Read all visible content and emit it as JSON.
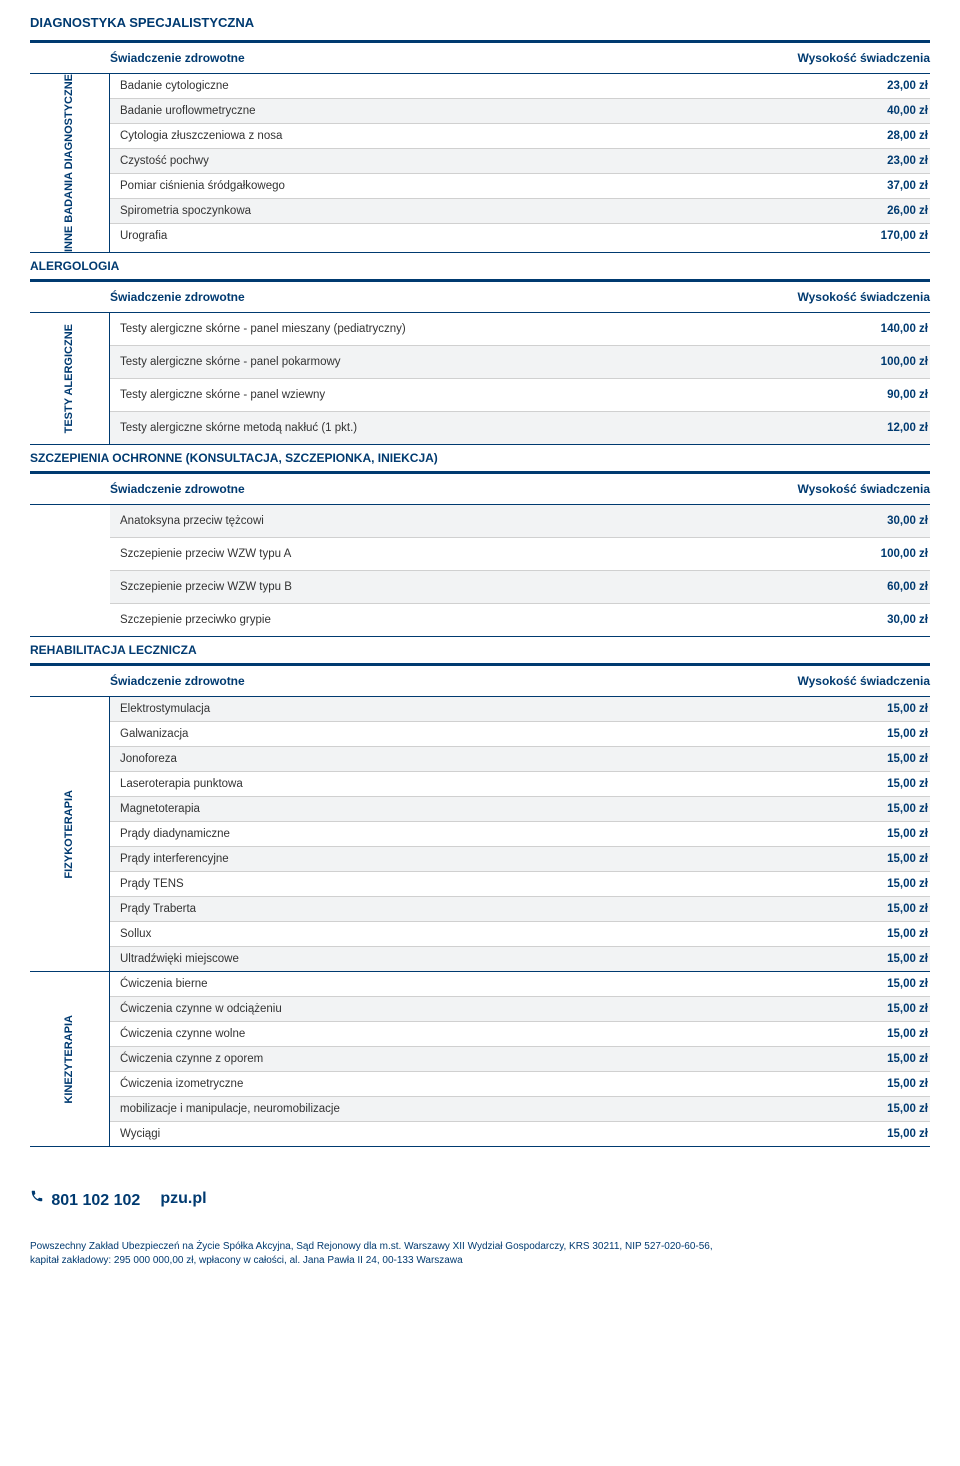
{
  "main_title": "DIAGNOSTYKA SPECJALISTYCZNA",
  "header_left": "Świadczenie zdrowotne",
  "header_right": "Wysokość świadczenia",
  "sections": [
    {
      "title": "",
      "category_label": "INNE BADANIA DIAGNOSTYCZNE",
      "rows": [
        {
          "name": "Badanie cytologiczne",
          "price": "23,00 zł",
          "alt": false
        },
        {
          "name": "Badanie uroflowmetryczne",
          "price": "40,00 zł",
          "alt": true
        },
        {
          "name": "Cytologia złuszczeniowa z nosa",
          "price": "28,00 zł",
          "alt": false
        },
        {
          "name": "Czystość pochwy",
          "price": "23,00 zł",
          "alt": true
        },
        {
          "name": "Pomiar ciśnienia śródgałkowego",
          "price": "37,00 zł",
          "alt": false
        },
        {
          "name": "Spirometria spoczynkowa",
          "price": "26,00 zł",
          "alt": true
        },
        {
          "name": "Urografia",
          "price": "170,00 zł",
          "alt": false
        }
      ]
    },
    {
      "title": "ALERGOLOGIA",
      "category_label": "TESTY ALERGICZNE",
      "rows": [
        {
          "name": "Testy alergiczne skórne - panel mieszany (pediatryczny)",
          "price": "140,00 zł",
          "alt": false,
          "tall": true
        },
        {
          "name": "Testy alergiczne skórne - panel pokarmowy",
          "price": "100,00 zł",
          "alt": true,
          "tall": true
        },
        {
          "name": "Testy alergiczne skórne - panel wziewny",
          "price": "90,00 zł",
          "alt": false,
          "tall": true
        },
        {
          "name": "Testy alergiczne skórne metodą nakłuć (1 pkt.)",
          "price": "12,00 zł",
          "alt": true,
          "tall": true
        }
      ]
    },
    {
      "title": "SZCZEPIENIA OCHRONNE (KONSULTACJA, SZCZEPIONKA, INIEKCJA)",
      "category_label": "",
      "rows": [
        {
          "name": "Anatoksyna przeciw tężcowi",
          "price": "30,00 zł",
          "alt": true,
          "tall": true
        },
        {
          "name": "Szczepienie przeciw WZW typu A",
          "price": "100,00 zł",
          "alt": false,
          "tall": true
        },
        {
          "name": "Szczepienie przeciw WZW typu B",
          "price": "60,00 zł",
          "alt": true,
          "tall": true
        },
        {
          "name": "Szczepienie przeciwko grypie",
          "price": "30,00 zł",
          "alt": false,
          "tall": true
        }
      ]
    },
    {
      "title": "REHABILITACJA LECZNICZA",
      "groups": [
        {
          "category_label": "FIZYKOTERAPIA",
          "rows": [
            {
              "name": "Elektrostymulacja",
              "price": "15,00 zł",
              "alt": true
            },
            {
              "name": "Galwanizacja",
              "price": "15,00 zł",
              "alt": false
            },
            {
              "name": "Jonoforeza",
              "price": "15,00 zł",
              "alt": true
            },
            {
              "name": "Laseroterapia punktowa",
              "price": "15,00 zł",
              "alt": false
            },
            {
              "name": "Magnetoterapia",
              "price": "15,00 zł",
              "alt": true
            },
            {
              "name": "Prądy diadynamiczne",
              "price": "15,00 zł",
              "alt": false
            },
            {
              "name": "Prądy interferencyjne",
              "price": "15,00 zł",
              "alt": true
            },
            {
              "name": "Prądy TENS",
              "price": "15,00 zł",
              "alt": false
            },
            {
              "name": "Prądy Traberta",
              "price": "15,00 zł",
              "alt": true
            },
            {
              "name": "Sollux",
              "price": "15,00 zł",
              "alt": false
            },
            {
              "name": "Ultradźwięki miejscowe",
              "price": "15,00 zł",
              "alt": true
            }
          ]
        },
        {
          "category_label": "KINEZYTERAPIA",
          "rows": [
            {
              "name": "Ćwiczenia bierne",
              "price": "15,00 zł",
              "alt": false
            },
            {
              "name": "Ćwiczenia czynne w odciążeniu",
              "price": "15,00 zł",
              "alt": true
            },
            {
              "name": "Ćwiczenia czynne wolne",
              "price": "15,00 zł",
              "alt": false
            },
            {
              "name": "Ćwiczenia czynne z oporem",
              "price": "15,00 zł",
              "alt": true
            },
            {
              "name": "Ćwiczenia izometryczne",
              "price": "15,00 zł",
              "alt": false
            },
            {
              "name": "mobilizacje i manipulacje, neuromobilizacje",
              "price": "15,00 zł",
              "alt": true
            },
            {
              "name": "Wyciągi",
              "price": "15,00 zł",
              "alt": false
            }
          ]
        }
      ]
    }
  ],
  "footer": {
    "phone": "801 102 102",
    "url": "pzu.pl",
    "legal_line1": "Powszechny Zakład Ubezpieczeń na Życie Spółka Akcyjna, Sąd Rejonowy dla m.st. Warszawy XII Wydział Gospodarczy, KRS 30211, NIP 527-020-60-56,",
    "legal_line2": "kapitał zakładowy: 295 000 000,00 zł, wpłacony w całości, al. Jana Pawła II 24, 00-133 Warszawa"
  },
  "colors": {
    "primary": "#003a70",
    "alt_bg": "#f2f3f4",
    "border_light": "#d0d0d0"
  }
}
